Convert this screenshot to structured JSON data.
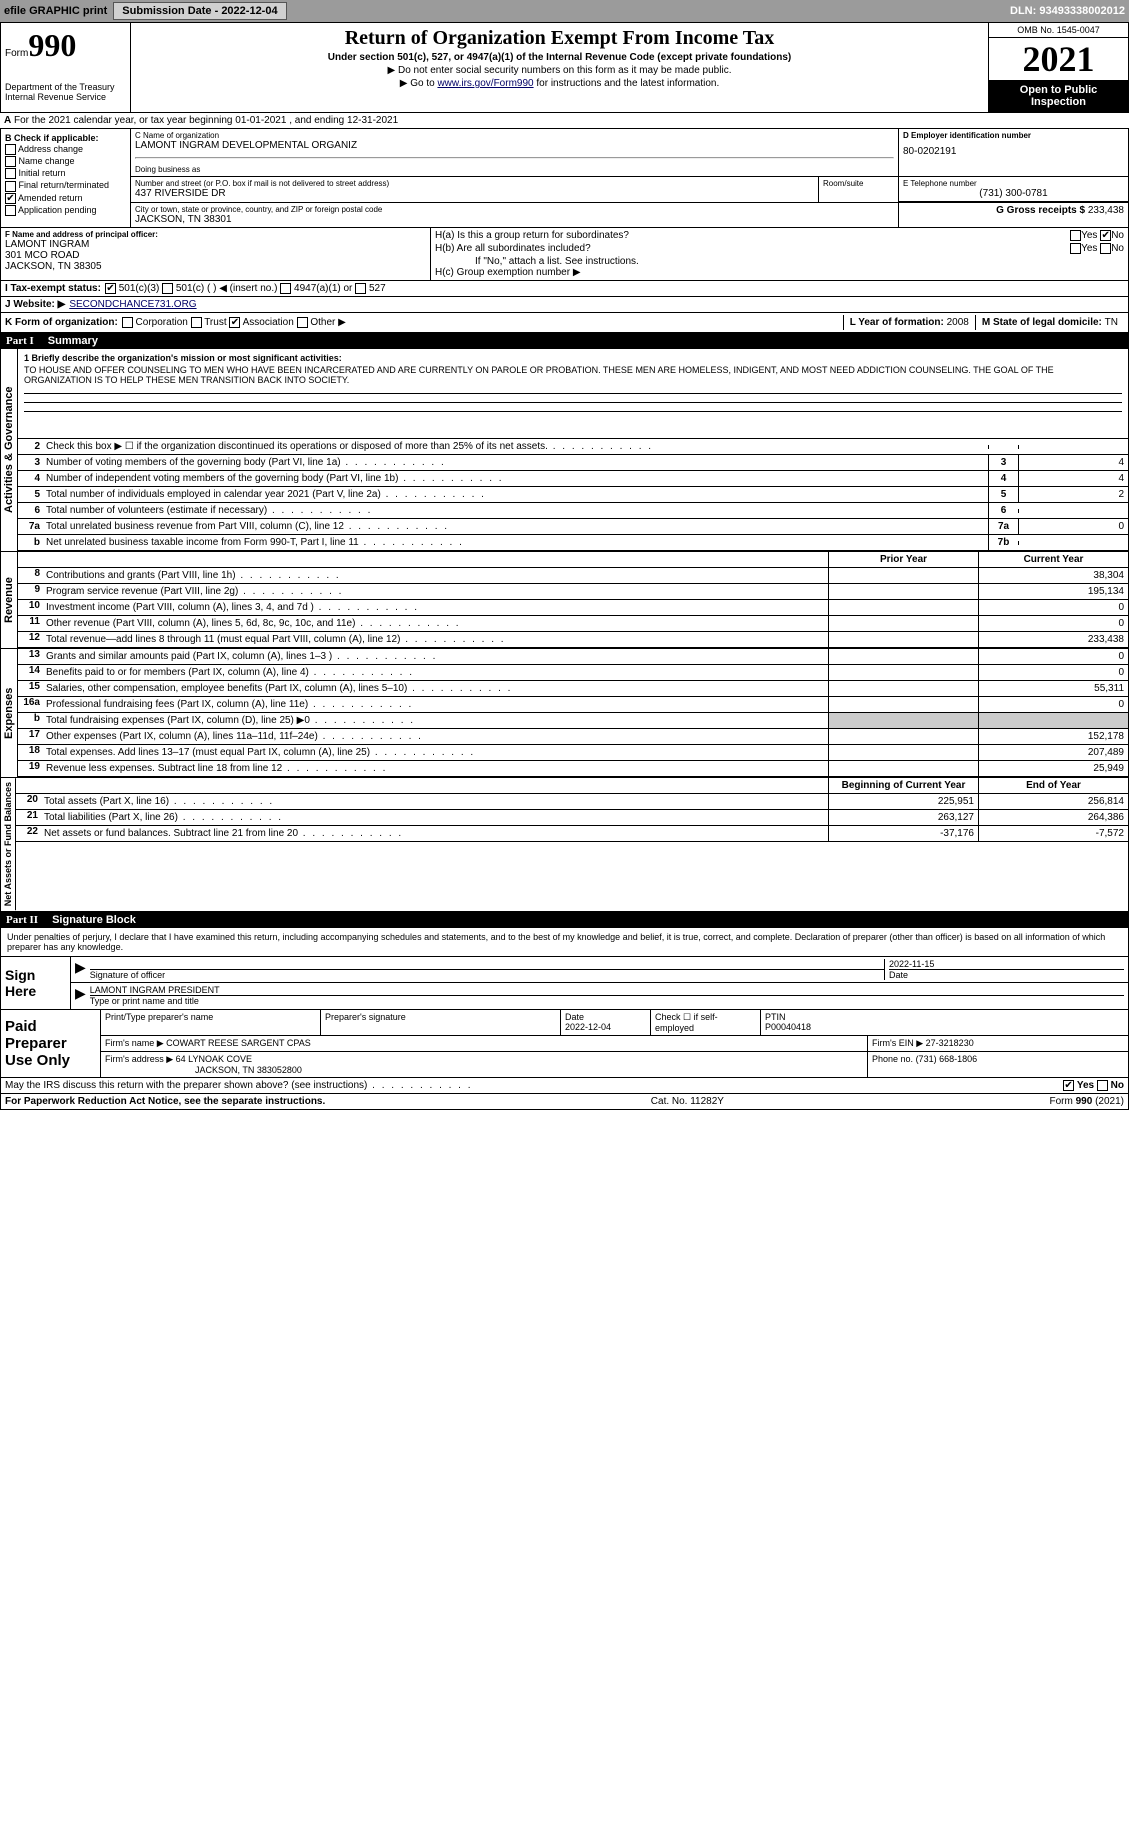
{
  "topbar": {
    "efile": "efile GRAPHIC print",
    "submission": "Submission Date - 2022-12-04",
    "dln": "DLN: 93493338002012"
  },
  "header": {
    "form_word": "Form",
    "form_no": "990",
    "title": "Return of Organization Exempt From Income Tax",
    "subtitle": "Under section 501(c), 527, or 4947(a)(1) of the Internal Revenue Code (except private foundations)",
    "warn": "▶ Do not enter social security numbers on this form as it may be made public.",
    "goto_pre": "▶ Go to ",
    "goto_link": "www.irs.gov/Form990",
    "goto_post": " for instructions and the latest information.",
    "omb": "OMB No. 1545-0047",
    "year": "2021",
    "open": "Open to Public Inspection",
    "dept": "Department of the Treasury",
    "irs": "Internal Revenue Service"
  },
  "period": "For the 2021 calendar year, or tax year beginning 01-01-2021    , and ending 12-31-2021",
  "blockB": {
    "hdr": "B Check if applicable:",
    "items": [
      "Address change",
      "Name change",
      "Initial return",
      "Final return/terminated",
      "Amended return",
      "Application pending"
    ],
    "checked_idx": 4
  },
  "blockC": {
    "lbl": "C Name of organization",
    "name": "LAMONT INGRAM DEVELOPMENTAL ORGANIZ",
    "dba_lbl": "Doing business as",
    "addr_lbl": "Number and street (or P.O. box if mail is not delivered to street address)",
    "addr": "437 RIVERSIDE DR",
    "room_lbl": "Room/suite",
    "city_lbl": "City or town, state or province, country, and ZIP or foreign postal code",
    "city": "JACKSON, TN  38301"
  },
  "blockD": {
    "lbl": "D Employer identification number",
    "val": "80-0202191"
  },
  "blockE": {
    "lbl": "E Telephone number",
    "val": "(731) 300-0781"
  },
  "blockG": {
    "lbl": "G Gross receipts $",
    "val": "233,438"
  },
  "blockF": {
    "lbl": "F  Name and address of principal officer:",
    "name": "LAMONT INGRAM",
    "addr1": "301 MCO ROAD",
    "addr2": "JACKSON, TN  38305"
  },
  "blockH": {
    "a": "H(a)  Is this a group return for subordinates?",
    "b": "H(b)  Are all subordinates included?",
    "note": "If \"No,\" attach a list. See instructions.",
    "c": "H(c)  Group exemption number ▶",
    "yes": "Yes",
    "no": "No"
  },
  "taxstatus": {
    "lbl": "I   Tax-exempt status:",
    "opts": [
      "501(c)(3)",
      "501(c) (  ) ◀ (insert no.)",
      "4947(a)(1) or",
      "527"
    ]
  },
  "website": {
    "lbl": "J   Website: ▶",
    "val": "SECONDCHANCE731.ORG"
  },
  "kform": {
    "lbl": "K Form of organization:",
    "opts": [
      "Corporation",
      "Trust",
      "Association",
      "Other ▶"
    ],
    "checked_idx": 2,
    "l_lbl": "L Year of formation: ",
    "l_val": "2008",
    "m_lbl": "M State of legal domicile: ",
    "m_val": "TN"
  },
  "part1": {
    "num": "Part I",
    "title": "Summary"
  },
  "mission": {
    "lbl": "1  Briefly describe the organization's mission or most significant activities:",
    "txt": "TO HOUSE AND OFFER COUNSELING TO MEN WHO HAVE BEEN INCARCERATED AND ARE CURRENTLY ON PAROLE OR PROBATION. THESE MEN ARE HOMELESS, INDIGENT, AND MOST NEED ADDICTION COUNSELING. THE GOAL OF THE ORGANIZATION IS TO HELP THESE MEN TRANSITION BACK INTO SOCIETY."
  },
  "gov_rows": [
    {
      "n": "2",
      "d": "Check this box ▶ ☐ if the organization discontinued its operations or disposed of more than 25% of its net assets.",
      "box": "",
      "amt": ""
    },
    {
      "n": "3",
      "d": "Number of voting members of the governing body (Part VI, line 1a)",
      "box": "3",
      "amt": "4"
    },
    {
      "n": "4",
      "d": "Number of independent voting members of the governing body (Part VI, line 1b)",
      "box": "4",
      "amt": "4"
    },
    {
      "n": "5",
      "d": "Total number of individuals employed in calendar year 2021 (Part V, line 2a)",
      "box": "5",
      "amt": "2"
    },
    {
      "n": "6",
      "d": "Total number of volunteers (estimate if necessary)",
      "box": "6",
      "amt": ""
    },
    {
      "n": "7a",
      "d": "Total unrelated business revenue from Part VIII, column (C), line 12",
      "box": "7a",
      "amt": "0"
    },
    {
      "n": "b",
      "d": "Net unrelated business taxable income from Form 990-T, Part I, line 11",
      "box": "7b",
      "amt": ""
    }
  ],
  "col_hdrs": {
    "prior": "Prior Year",
    "current": "Current Year"
  },
  "revenue_rows": [
    {
      "n": "8",
      "d": "Contributions and grants (Part VIII, line 1h)",
      "p": "",
      "c": "38,304"
    },
    {
      "n": "9",
      "d": "Program service revenue (Part VIII, line 2g)",
      "p": "",
      "c": "195,134"
    },
    {
      "n": "10",
      "d": "Investment income (Part VIII, column (A), lines 3, 4, and 7d )",
      "p": "",
      "c": "0"
    },
    {
      "n": "11",
      "d": "Other revenue (Part VIII, column (A), lines 5, 6d, 8c, 9c, 10c, and 11e)",
      "p": "",
      "c": "0"
    },
    {
      "n": "12",
      "d": "Total revenue—add lines 8 through 11 (must equal Part VIII, column (A), line 12)",
      "p": "",
      "c": "233,438"
    }
  ],
  "expense_rows": [
    {
      "n": "13",
      "d": "Grants and similar amounts paid (Part IX, column (A), lines 1–3 )",
      "p": "",
      "c": "0"
    },
    {
      "n": "14",
      "d": "Benefits paid to or for members (Part IX, column (A), line 4)",
      "p": "",
      "c": "0"
    },
    {
      "n": "15",
      "d": "Salaries, other compensation, employee benefits (Part IX, column (A), lines 5–10)",
      "p": "",
      "c": "55,311"
    },
    {
      "n": "16a",
      "d": "Professional fundraising fees (Part IX, column (A), line 11e)",
      "p": "",
      "c": "0"
    },
    {
      "n": "b",
      "d": "Total fundraising expenses (Part IX, column (D), line 25) ▶0",
      "p": "—",
      "c": "—"
    },
    {
      "n": "17",
      "d": "Other expenses (Part IX, column (A), lines 11a–11d, 11f–24e)",
      "p": "",
      "c": "152,178"
    },
    {
      "n": "18",
      "d": "Total expenses. Add lines 13–17 (must equal Part IX, column (A), line 25)",
      "p": "",
      "c": "207,489"
    },
    {
      "n": "19",
      "d": "Revenue less expenses. Subtract line 18 from line 12",
      "p": "",
      "c": "25,949"
    }
  ],
  "net_hdrs": {
    "beg": "Beginning of Current Year",
    "end": "End of Year"
  },
  "net_rows": [
    {
      "n": "20",
      "d": "Total assets (Part X, line 16)",
      "p": "225,951",
      "c": "256,814"
    },
    {
      "n": "21",
      "d": "Total liabilities (Part X, line 26)",
      "p": "263,127",
      "c": "264,386"
    },
    {
      "n": "22",
      "d": "Net assets or fund balances. Subtract line 21 from line 20",
      "p": "-37,176",
      "c": "-7,572"
    }
  ],
  "vtabs": {
    "gov": "Activities & Governance",
    "rev": "Revenue",
    "exp": "Expenses",
    "net": "Net Assets or Fund Balances"
  },
  "part2": {
    "num": "Part II",
    "title": "Signature Block"
  },
  "sig_text": "Under penalties of perjury, I declare that I have examined this return, including accompanying schedules and statements, and to the best of my knowledge and belief, it is true, correct, and complete. Declaration of preparer (other than officer) is based on all information of which preparer has any knowledge.",
  "sign": {
    "here": "Sign Here",
    "sig_lbl": "Signature of officer",
    "date": "2022-11-15",
    "date_lbl": "Date",
    "name": "LAMONT INGRAM  PRESIDENT",
    "name_lbl": "Type or print name and title"
  },
  "paid": {
    "lbl": "Paid Preparer Use Only",
    "r1": {
      "a": "Print/Type preparer's name",
      "b": "Preparer's signature",
      "c_lbl": "Date",
      "c": "2022-12-04",
      "d": "Check ☐ if self-employed",
      "e_lbl": "PTIN",
      "e": "P00040418"
    },
    "r2": {
      "a_lbl": "Firm's name    ▶",
      "a": "COWART REESE SARGENT CPAS",
      "b_lbl": "Firm's EIN ▶",
      "b": "27-3218230"
    },
    "r3": {
      "a_lbl": "Firm's address ▶",
      "a": "64 LYNOAK COVE",
      "b_lbl": "Phone no.",
      "b": "(731) 668-1806"
    },
    "r3b": "JACKSON, TN  383052800"
  },
  "discuss": {
    "q": "May the IRS discuss this return with the preparer shown above? (see instructions)",
    "yes": "Yes",
    "no": "No"
  },
  "footer": {
    "pra": "For Paperwork Reduction Act Notice, see the separate instructions.",
    "cat": "Cat. No. 11282Y",
    "form": "Form 990 (2021)"
  }
}
